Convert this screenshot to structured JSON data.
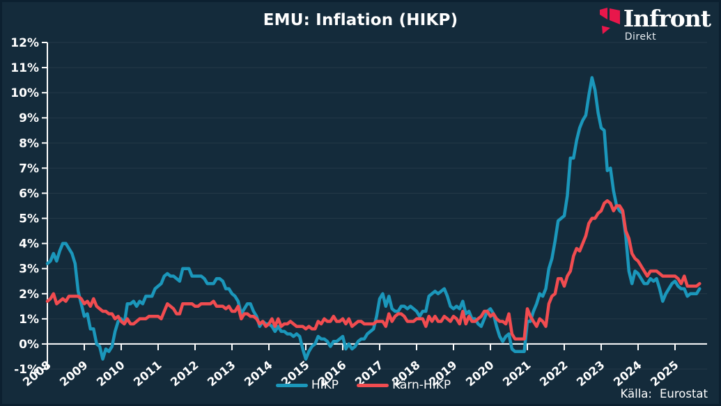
{
  "title": "EMU: Inflation (HIKP)",
  "logo": {
    "name": "Infront",
    "sub": "Direkt"
  },
  "source": {
    "label": "Källa:",
    "value": "Eurostat"
  },
  "colors": {
    "background": "#142B3B",
    "border": "#0C2030",
    "axis": "#FFFFFF",
    "text": "#FFFFFF",
    "grid": "rgba(255,255,255,0.07)",
    "hikp": "#1B97BB",
    "karn": "#F14C50",
    "logo_red": "#E8174B"
  },
  "chart_data": {
    "type": "line",
    "title": "EMU: Inflation (HIKP)",
    "x_frequency": "monthly",
    "x_start": "2008-01",
    "x_end": "2025-09",
    "x_tick_labels": [
      "2008",
      "2009",
      "2010",
      "2011",
      "2012",
      "2013",
      "2014",
      "2015",
      "2016",
      "2017",
      "2018",
      "2019",
      "2020",
      "2021",
      "2022",
      "2023",
      "2024",
      "2025"
    ],
    "y_tick_labels": [
      "12%",
      "11%",
      "10%",
      "9%",
      "8%",
      "7%",
      "6%",
      "5%",
      "4%",
      "3%",
      "2%",
      "1%",
      "0%",
      "-1%"
    ],
    "ylim": [
      -1,
      12
    ],
    "grid": true,
    "legend_position": "bottom",
    "series": [
      {
        "name": "HIKP",
        "color": "#1B97BB",
        "values": [
          3.2,
          3.3,
          3.6,
          3.3,
          3.7,
          4.0,
          4.0,
          3.8,
          3.6,
          3.2,
          2.1,
          1.6,
          1.1,
          1.2,
          0.6,
          0.6,
          0.0,
          -0.1,
          -0.6,
          -0.2,
          -0.3,
          -0.1,
          0.5,
          0.9,
          1.0,
          0.8,
          1.6,
          1.6,
          1.7,
          1.5,
          1.7,
          1.6,
          1.9,
          1.9,
          1.9,
          2.2,
          2.3,
          2.4,
          2.7,
          2.8,
          2.7,
          2.7,
          2.6,
          2.5,
          3.0,
          3.0,
          3.0,
          2.7,
          2.7,
          2.7,
          2.7,
          2.6,
          2.4,
          2.4,
          2.4,
          2.6,
          2.6,
          2.5,
          2.2,
          2.2,
          2.0,
          1.9,
          1.7,
          1.2,
          1.4,
          1.6,
          1.6,
          1.3,
          1.1,
          0.7,
          0.9,
          0.8,
          0.8,
          0.7,
          0.5,
          0.7,
          0.5,
          0.5,
          0.4,
          0.4,
          0.3,
          0.4,
          0.3,
          -0.2,
          -0.6,
          -0.3,
          -0.1,
          0.0,
          0.3,
          0.2,
          0.2,
          0.1,
          -0.1,
          0.1,
          0.1,
          0.2,
          0.3,
          -0.2,
          0.0,
          -0.2,
          -0.1,
          0.1,
          0.2,
          0.2,
          0.4,
          0.5,
          0.6,
          1.1,
          1.8,
          2.0,
          1.5,
          1.9,
          1.4,
          1.3,
          1.3,
          1.5,
          1.5,
          1.4,
          1.5,
          1.4,
          1.3,
          1.1,
          1.3,
          1.3,
          1.9,
          2.0,
          2.1,
          2.0,
          2.1,
          2.2,
          1.9,
          1.5,
          1.4,
          1.5,
          1.4,
          1.7,
          1.2,
          1.3,
          1.0,
          1.0,
          0.8,
          0.7,
          1.0,
          1.3,
          1.4,
          1.2,
          0.7,
          0.3,
          0.1,
          0.3,
          0.4,
          -0.2,
          -0.3,
          -0.3,
          -0.3,
          -0.3,
          0.9,
          0.9,
          1.3,
          1.6,
          2.0,
          1.9,
          2.2,
          3.0,
          3.4,
          4.1,
          4.9,
          5.0,
          5.1,
          5.9,
          7.4,
          7.4,
          8.1,
          8.6,
          8.9,
          9.1,
          9.9,
          10.6,
          10.1,
          9.2,
          8.6,
          8.5,
          6.9,
          7.0,
          6.1,
          5.5,
          5.3,
          5.2,
          4.3,
          2.9,
          2.4,
          2.9,
          2.8,
          2.6,
          2.4,
          2.4,
          2.6,
          2.5,
          2.6,
          2.2,
          1.7,
          2.0,
          2.2,
          2.4,
          2.5,
          2.3,
          2.2,
          2.2,
          1.9,
          2.0,
          2.0,
          2.0,
          2.2
        ]
      },
      {
        "name": "Kärn-HIKP",
        "color": "#F14C50",
        "values": [
          1.7,
          1.8,
          2.0,
          1.6,
          1.7,
          1.8,
          1.7,
          1.9,
          1.9,
          1.9,
          1.9,
          1.8,
          1.6,
          1.7,
          1.5,
          1.8,
          1.5,
          1.4,
          1.3,
          1.3,
          1.2,
          1.2,
          1.0,
          1.1,
          0.9,
          0.8,
          1.0,
          0.8,
          0.8,
          0.9,
          1.0,
          1.0,
          1.0,
          1.1,
          1.1,
          1.1,
          1.1,
          1.0,
          1.3,
          1.6,
          1.5,
          1.4,
          1.2,
          1.2,
          1.6,
          1.6,
          1.6,
          1.6,
          1.5,
          1.5,
          1.6,
          1.6,
          1.6,
          1.6,
          1.7,
          1.5,
          1.5,
          1.5,
          1.4,
          1.5,
          1.3,
          1.3,
          1.5,
          1.0,
          1.2,
          1.2,
          1.1,
          1.1,
          1.0,
          0.8,
          0.9,
          0.7,
          0.8,
          1.0,
          0.7,
          1.0,
          0.7,
          0.8,
          0.8,
          0.9,
          0.8,
          0.7,
          0.7,
          0.7,
          0.6,
          0.7,
          0.6,
          0.6,
          0.9,
          0.8,
          1.0,
          0.9,
          0.9,
          1.1,
          0.9,
          0.9,
          1.0,
          0.8,
          1.0,
          0.7,
          0.8,
          0.9,
          0.9,
          0.8,
          0.8,
          0.8,
          0.8,
          0.9,
          0.9,
          0.9,
          0.7,
          1.2,
          0.9,
          1.1,
          1.2,
          1.2,
          1.1,
          0.9,
          0.9,
          0.9,
          1.0,
          1.0,
          1.0,
          0.7,
          1.1,
          0.9,
          1.1,
          0.9,
          0.9,
          1.1,
          1.0,
          0.9,
          1.1,
          1.0,
          0.8,
          1.3,
          0.8,
          1.1,
          0.9,
          0.9,
          1.0,
          1.1,
          1.3,
          1.3,
          1.1,
          1.2,
          1.0,
          0.9,
          0.9,
          0.8,
          1.2,
          0.4,
          0.2,
          0.2,
          0.2,
          0.2,
          1.4,
          1.1,
          0.9,
          0.7,
          1.0,
          0.9,
          0.7,
          1.6,
          1.9,
          2.0,
          2.6,
          2.6,
          2.3,
          2.7,
          2.9,
          3.5,
          3.8,
          3.7,
          4.0,
          4.3,
          4.8,
          5.0,
          5.0,
          5.2,
          5.3,
          5.6,
          5.7,
          5.6,
          5.3,
          5.5,
          5.5,
          5.3,
          4.5,
          4.2,
          3.6,
          3.4,
          3.3,
          3.1,
          2.9,
          2.7,
          2.9,
          2.9,
          2.9,
          2.8,
          2.7,
          2.7,
          2.7,
          2.7,
          2.7,
          2.6,
          2.4,
          2.7,
          2.3,
          2.3,
          2.3,
          2.3,
          2.4
        ]
      }
    ]
  }
}
